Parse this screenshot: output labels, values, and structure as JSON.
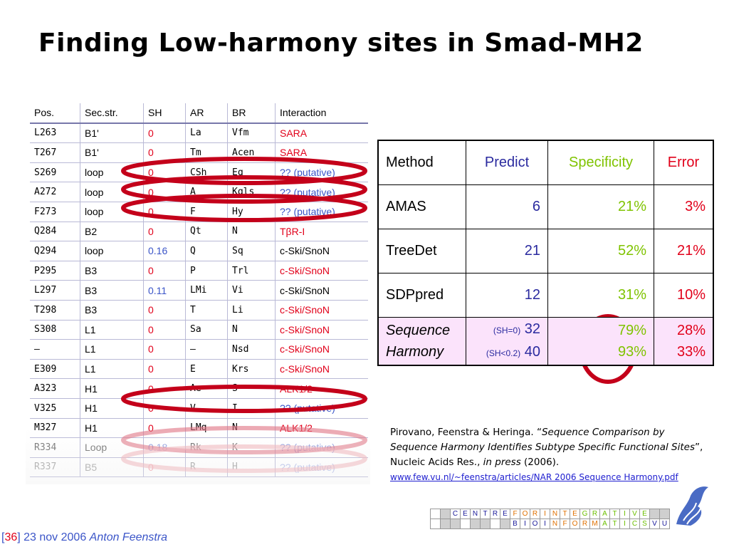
{
  "slide": {
    "title": "Finding Low-harmony sites in Smad-MH2",
    "footer": {
      "slide_number": "36",
      "date": "23 nov 2006",
      "author": "Anton Feenstra"
    }
  },
  "left_table": {
    "headers": [
      "Pos.",
      "Sec.str.",
      "SH",
      "AR",
      "BR",
      "Interaction"
    ],
    "rows": [
      {
        "pos": "L263",
        "sec": "B1'",
        "sh": "0",
        "ar": "La",
        "br": "Vfm",
        "int": "SARA",
        "sh_color": "red",
        "int_color": "red"
      },
      {
        "pos": "T267",
        "sec": "B1'",
        "sh": "0",
        "ar": "Tm",
        "br": "Acen",
        "int": "SARA",
        "sh_color": "red",
        "int_color": "red"
      },
      {
        "pos": "S269",
        "sec": "loop",
        "sh": "0",
        "ar": "CSh",
        "br": "Eq",
        "int": "?? (putative)",
        "sh_color": "red",
        "int_color": "blue"
      },
      {
        "pos": "A272",
        "sec": "loop",
        "sh": "0",
        "ar": "A",
        "br": "Kqls",
        "int": "?? (putative)",
        "sh_color": "red",
        "int_color": "blue"
      },
      {
        "pos": "F273",
        "sec": "loop",
        "sh": "0",
        "ar": "F",
        "br": "Hy",
        "int": "?? (putative)",
        "sh_color": "red",
        "int_color": "blue"
      },
      {
        "pos": "Q284",
        "sec": "B2",
        "sh": "0",
        "ar": "Qt",
        "br": "N",
        "int": "TβR-I",
        "sh_color": "red",
        "int_color": "red"
      },
      {
        "pos": "Q294",
        "sec": "loop",
        "sh": "0.16",
        "ar": "Q",
        "br": "Sq",
        "int": "c-Ski/SnoN",
        "sh_color": "blue",
        "int_color": "dark"
      },
      {
        "pos": "P295",
        "sec": "B3",
        "sh": "0",
        "ar": "P",
        "br": "Trl",
        "int": "c-Ski/SnoN",
        "sh_color": "red",
        "int_color": "red"
      },
      {
        "pos": "L297",
        "sec": "B3",
        "sh": "0.11",
        "ar": "LMi",
        "br": "Vi",
        "int": "c-Ski/SnoN",
        "sh_color": "blue",
        "int_color": "dark"
      },
      {
        "pos": "T298",
        "sec": "B3",
        "sh": "0",
        "ar": "T",
        "br": "Li",
        "int": "c-Ski/SnoN",
        "sh_color": "red",
        "int_color": "red"
      },
      {
        "pos": "S308",
        "sec": "L1",
        "sh": "0",
        "ar": "Sa",
        "br": "N",
        "int": "c-Ski/SnoN",
        "sh_color": "red",
        "int_color": "red"
      },
      {
        "pos": "–",
        "sec": "L1",
        "sh": "0",
        "ar": "–",
        "br": "Nsd",
        "int": "c-Ski/SnoN",
        "sh_color": "red",
        "int_color": "red"
      },
      {
        "pos": "E309",
        "sec": "L1",
        "sh": "0",
        "ar": "E",
        "br": "Krs",
        "int": "c-Ski/SnoN",
        "sh_color": "red",
        "int_color": "red"
      },
      {
        "pos": "A323",
        "sec": "H1",
        "sh": "0",
        "ar": "Ae",
        "br": "S",
        "int": "ALK1/2",
        "sh_color": "red",
        "int_color": "red"
      },
      {
        "pos": "V325",
        "sec": "H1",
        "sh": "0",
        "ar": "V",
        "br": "I",
        "int": "?? (putative)",
        "sh_color": "red",
        "int_color": "blue"
      },
      {
        "pos": "M327",
        "sec": "H1",
        "sh": "0",
        "ar": "LMq",
        "br": "N",
        "int": "ALK1/2",
        "sh_color": "red",
        "int_color": "red"
      },
      {
        "pos": "R334",
        "sec": "Loop",
        "sh": "0.18",
        "ar": "Rk",
        "br": "K",
        "int": "?? (putative)",
        "sh_color": "blue",
        "int_color": "blue"
      },
      {
        "pos": "R337",
        "sec": "B5",
        "sh": "0",
        "ar": "R",
        "br": "H",
        "int": "?? (putative)",
        "sh_color": "red",
        "int_color": "blue"
      }
    ]
  },
  "right_table": {
    "headers": {
      "method": "Method",
      "predict": "Predict",
      "specificity": "Specificity",
      "error": "Error"
    },
    "rows": [
      {
        "method": "AMAS",
        "predict": "6",
        "specificity": "21%",
        "error": "3%"
      },
      {
        "method": "TreeDet",
        "predict": "21",
        "specificity": "52%",
        "error": "21%"
      },
      {
        "method": "SDPpred",
        "predict": "12",
        "specificity": "31%",
        "error": "10%"
      }
    ],
    "sh_row": {
      "method_line1": "Sequence",
      "method_line2": "Harmony",
      "pred1_note": "(SH=0)",
      "pred1": "32",
      "pred2_note": "(SH<0.2)",
      "pred2": "40",
      "spec1": "79%",
      "spec2": "93%",
      "err1": "28%",
      "err2": "33%"
    }
  },
  "citation": {
    "authors": "Pirovano, Feenstra & Heringa. “",
    "title": "Sequence Comparison by Sequence Harmony Identifies Subtype Specific Functional Sites",
    "close": "”, Nucleic Acids Res., ",
    "status": "in press",
    "year": " (2006).",
    "url": "www.few.vu.nl/~feenstra/articles/NAR 2006 Sequence Harmony.pdf"
  },
  "logo_grid": {
    "row1": [
      "C",
      "E",
      "N",
      "T",
      "R",
      "E",
      "F",
      "O",
      "R",
      "I",
      "N",
      "T",
      "E",
      "G",
      "R",
      "A",
      "T",
      "I",
      "V",
      "E"
    ],
    "row2": [
      "B",
      "I",
      "O",
      "I",
      "N",
      "F",
      "O",
      "R",
      "M",
      "A",
      "T",
      "I",
      "C",
      "S",
      "V",
      "U"
    ]
  },
  "colors": {
    "red": "#e1001a",
    "blue": "#3b55c8",
    "green": "#7fc300",
    "navy": "#2a2a9f"
  }
}
